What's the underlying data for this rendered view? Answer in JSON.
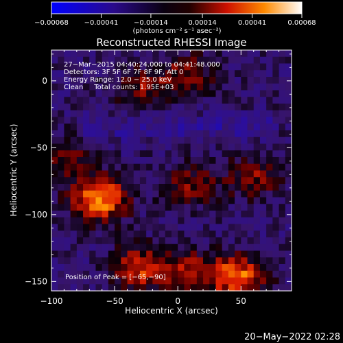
{
  "chart_data": {
    "type": "heatmap",
    "title": "Reconstructed RHESSI Image",
    "xlabel": "Heliocentric X (arcsec)",
    "ylabel": "Heliocentric Y (arcsec)",
    "xlim": [
      -100,
      90
    ],
    "ylim": [
      -157,
      23
    ],
    "x_ticks": [
      {
        "value": -100,
        "label": "−100"
      },
      {
        "value": -50,
        "label": "−50"
      },
      {
        "value": 0,
        "label": "0"
      },
      {
        "value": 50,
        "label": "50"
      }
    ],
    "y_ticks": [
      {
        "value": 0,
        "label": "0"
      },
      {
        "value": -50,
        "label": "−50"
      },
      {
        "value": -100,
        "label": "−100"
      },
      {
        "value": -150,
        "label": "−150"
      }
    ],
    "colorbar": {
      "min": -0.00068,
      "max": 0.00068,
      "unit_label": "(photons cm⁻² s⁻¹ asec⁻²)",
      "tick_values": [
        -0.00068,
        -0.00041,
        -0.00014,
        0.00014,
        0.00041,
        0.00068
      ],
      "tick_labels": [
        "−0.00068",
        "−0.00041",
        "−0.00014",
        "0.00014",
        "0.00041",
        "0.00068"
      ]
    },
    "sources": [
      {
        "x": -62,
        "y": -88,
        "peak": 0.00068
      },
      {
        "x": -30,
        "y": -140,
        "peak": 0.00046
      },
      {
        "x": 47,
        "y": -147,
        "peak": 0.00058
      },
      {
        "x": 8,
        "y": -142,
        "peak": 0.00036
      },
      {
        "x": 10,
        "y": -78,
        "peak": 0.0003
      },
      {
        "x": 60,
        "y": -72,
        "peak": 0.00032
      },
      {
        "x": -28,
        "y": -5,
        "peak": 0.0003
      },
      {
        "x": 8,
        "y": 5,
        "peak": 0.0003
      },
      {
        "x": -90,
        "y": -58,
        "peak": 0.0003
      }
    ],
    "peak_position": [
      -65,
      -90
    ],
    "info_lines": [
      "27−Mar−2015 04:40:24.000 to 04:41:48.000",
      "Detectors: 3F 5F 6F 7F 8F 9F, Att 0",
      "Energy Range: 12.0 − 25.0 keV",
      "Clean     Total counts: 1.95E+03"
    ],
    "peak_label": "Position of Peak = [−65,−90]"
  },
  "footer": {
    "timestamp": "20−May−2022 02:28"
  }
}
